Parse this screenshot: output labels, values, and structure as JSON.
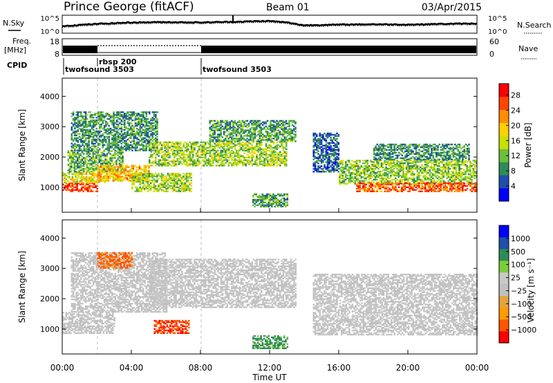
{
  "header": {
    "title": "Prince George (fitACF)",
    "beam": "Beam 01",
    "date": "03/Apr/2015"
  },
  "noise_panel": {
    "left_label": "N.Sky",
    "right_label": "N.Search",
    "ticks_left": [
      "10^5",
      "10^0"
    ],
    "ticks_right": [
      "10^5",
      "10^0"
    ]
  },
  "freq_panel": {
    "left_label_line1": "Freq.",
    "left_label_line2": "[MHz]",
    "right_label": "Nave",
    "ticks_left": [
      "18",
      "8"
    ],
    "ticks_right": [
      "60",
      "0"
    ]
  },
  "cpid": {
    "label": "CPID",
    "segments": [
      {
        "name": "twofsound 3503",
        "start_hour": 0
      },
      {
        "name": "rbsp 200",
        "start_hour": 2
      },
      {
        "name": "twofsound 3503",
        "start_hour": 8
      }
    ]
  },
  "colors": {
    "power_scale": [
      "#0000ff",
      "#1f4fa8",
      "#2e8b57",
      "#6dbf3a",
      "#c8e000",
      "#ffd000",
      "#ff8c00",
      "#ff4500",
      "#ff0000"
    ],
    "velocity_scale": [
      "#ff0000",
      "#ff5500",
      "#ff9a00",
      "#e6a23c",
      "#c0c0c0",
      "#c8c8c8",
      "#7ccd3a",
      "#2e8b57",
      "#1f4fa8",
      "#0000ff"
    ]
  },
  "chart_data": [
    {
      "type": "heatmap",
      "quantity": "power",
      "ylabel": "Slant Range [km]",
      "ylim": [
        180,
        4600
      ],
      "yticks": [
        "1000",
        "2000",
        "3000",
        "4000"
      ],
      "xlim_hours": [
        0,
        24
      ],
      "colorbar": {
        "label": "Power [dB]",
        "ticks": [
          "4",
          "8",
          "12",
          "16",
          "20",
          "24",
          "28"
        ],
        "range": [
          0,
          31
        ]
      },
      "echo_regions": [
        {
          "t0": 0.0,
          "t1": 2.0,
          "r0": 850,
          "r1": 1150,
          "value": 27
        },
        {
          "t0": 0.0,
          "t1": 2.5,
          "r0": 1150,
          "r1": 1500,
          "value": 17
        },
        {
          "t0": 0.3,
          "t1": 3.5,
          "r0": 1500,
          "r1": 2200,
          "value": 11
        },
        {
          "t0": 0.5,
          "t1": 5.5,
          "r0": 2200,
          "r1": 3500,
          "value": 9
        },
        {
          "t0": 2.0,
          "t1": 5.0,
          "r0": 1200,
          "r1": 1700,
          "value": 20
        },
        {
          "t0": 4.0,
          "t1": 7.5,
          "r0": 850,
          "r1": 1450,
          "value": 14
        },
        {
          "t0": 5.0,
          "t1": 13.0,
          "r0": 1700,
          "r1": 2500,
          "value": 14
        },
        {
          "t0": 8.5,
          "t1": 13.5,
          "r0": 2500,
          "r1": 3200,
          "value": 10
        },
        {
          "t0": 11.0,
          "t1": 13.0,
          "r0": 350,
          "r1": 800,
          "value": 10
        },
        {
          "t0": 14.5,
          "t1": 16.0,
          "r0": 1500,
          "r1": 2800,
          "value": 6
        },
        {
          "t0": 16.0,
          "t1": 24.0,
          "r0": 1100,
          "r1": 1900,
          "value": 13
        },
        {
          "t0": 17.0,
          "t1": 24.0,
          "r0": 850,
          "r1": 1150,
          "value": 25
        },
        {
          "t0": 18.0,
          "t1": 23.5,
          "r0": 1900,
          "r1": 2400,
          "value": 9
        }
      ]
    },
    {
      "type": "heatmap",
      "quantity": "velocity",
      "ylabel": "Slant Range [km]",
      "ylim": [
        180,
        4600
      ],
      "yticks": [
        "1000",
        "2000",
        "3000",
        "4000"
      ],
      "xlabel": "Time UT",
      "xticks": [
        "00:00",
        "04:00",
        "08:00",
        "12:00",
        "16:00",
        "20:00",
        "00:00"
      ],
      "xlim_hours": [
        0,
        24
      ],
      "colorbar": {
        "label": "Velocity [m s⁻¹]",
        "ticks": [
          "1000",
          "500",
          "100",
          "25",
          "−25",
          "−100",
          "−500",
          "−1000"
        ]
      },
      "echo_regions": [
        {
          "t0": 0.0,
          "t1": 3.0,
          "r0": 850,
          "r1": 1550,
          "value": 0
        },
        {
          "t0": 0.5,
          "t1": 6.0,
          "r0": 1550,
          "r1": 3500,
          "value": 0
        },
        {
          "t0": 5.3,
          "t1": 7.3,
          "r0": 850,
          "r1": 1300,
          "value": -450
        },
        {
          "t0": 5.0,
          "t1": 13.5,
          "r0": 1700,
          "r1": 3300,
          "value": 0
        },
        {
          "t0": 11.0,
          "t1": 13.0,
          "r0": 350,
          "r1": 800,
          "value": 150
        },
        {
          "t0": 14.5,
          "t1": 24.0,
          "r0": 800,
          "r1": 2800,
          "value": 0
        },
        {
          "t0": 2.0,
          "t1": 4.0,
          "r0": 3000,
          "r1": 3500,
          "value": -150
        }
      ]
    }
  ],
  "noise_series": {
    "sky_level_hours": [
      0,
      2,
      4,
      6,
      8,
      10,
      12,
      13,
      14,
      16,
      18,
      20,
      22,
      24
    ],
    "sky_level_values": [
      2.0,
      2.6,
      3.0,
      3.1,
      3.0,
      3.2,
      3.4,
      3.0,
      2.2,
      2.4,
      2.5,
      2.4,
      2.6,
      2.7
    ]
  },
  "axes": {
    "time_label": "Time UT"
  }
}
